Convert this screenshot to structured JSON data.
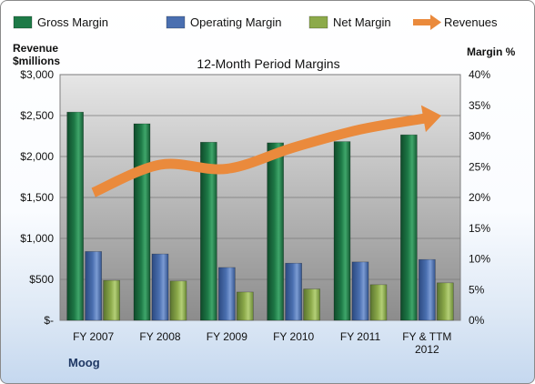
{
  "chart_data": {
    "type": "bar",
    "title": "12-Month Period Margins",
    "left_axis_title_line1": "Revenue",
    "left_axis_title_line2": "$millions",
    "right_axis_title": "Margin %",
    "footer_label": "Moog",
    "categories": [
      "FY 2007",
      "FY 2008",
      "FY 2009",
      "FY 2010",
      "FY 2011",
      "FY & TTM 2012"
    ],
    "left_ticks": [
      "$-",
      "$500",
      "$1,000",
      "$1,500",
      "$2,000",
      "$2,500",
      "$3,000"
    ],
    "right_ticks": [
      "0%",
      "5%",
      "10%",
      "15%",
      "20%",
      "25%",
      "30%",
      "35%",
      "40%"
    ],
    "ylim_margin_pct": [
      0,
      40
    ],
    "ylim_revenue": [
      0,
      3000
    ],
    "series": [
      {
        "name": "Gross Margin",
        "kind": "bar",
        "axis": "right",
        "values": [
          33.9,
          32.0,
          29.0,
          28.9,
          29.1,
          30.2
        ]
      },
      {
        "name": "Operating Margin",
        "kind": "bar",
        "axis": "right",
        "values": [
          11.2,
          10.8,
          8.6,
          9.3,
          9.5,
          9.9
        ]
      },
      {
        "name": "Net Margin",
        "kind": "bar",
        "axis": "right",
        "values": [
          6.5,
          6.4,
          4.6,
          5.1,
          5.8,
          6.1
        ]
      },
      {
        "name": "Revenues",
        "kind": "line-arrow",
        "axis": "left",
        "values": [
          1560,
          1900,
          1850,
          2110,
          2330,
          2470
        ]
      }
    ],
    "colors": {
      "gross": "#1e7a47",
      "operating": "#4a6fb0",
      "net": "#8caa4a",
      "revenues": "#ea8a3c",
      "plot_bg_top": "#e6e6e6",
      "plot_bg_bottom": "#8c8c8c"
    },
    "legend_position": "top",
    "grid": true
  }
}
